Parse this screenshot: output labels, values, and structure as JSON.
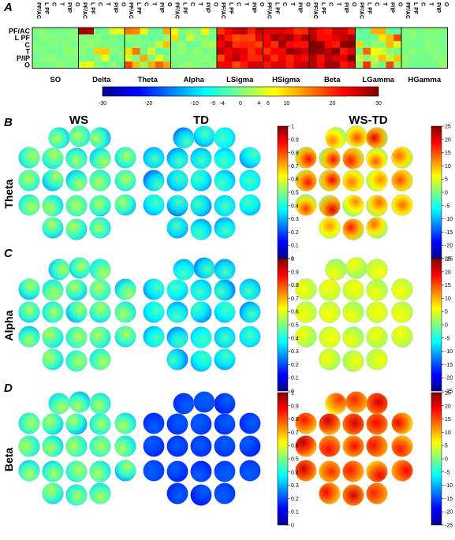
{
  "panel_letters": [
    "A",
    "B",
    "C",
    "D"
  ],
  "panel_a": {
    "regions": [
      "PF/AC",
      "L PF",
      "C",
      "T",
      "P/IP",
      "O"
    ],
    "top_region_labels": [
      "PF/AC",
      "L PF",
      "C",
      "T",
      "P/IP",
      "O"
    ],
    "bands": [
      "SO",
      "Delta",
      "Theta",
      "Alpha",
      "LSigma",
      "HSigma",
      "Beta",
      "LGamma",
      "HGamma"
    ],
    "colorbar_ticks": [
      "-30",
      "-20",
      "-10",
      "-6",
      "-4",
      "0",
      "4",
      "6",
      "10",
      "20",
      "30"
    ]
  },
  "column_titles": [
    "WS",
    "TD",
    "WS-TD"
  ],
  "row_titles": [
    "Theta",
    "Alpha",
    "Beta"
  ],
  "colorbar_left_ticks": [
    "1",
    "0.9",
    "0.8",
    "0.7",
    "0.6",
    "0.5",
    "0.4",
    "0.3",
    "0.2",
    "0.1",
    "0"
  ],
  "colorbar_right_ticks": [
    "25",
    "20",
    "15",
    "10",
    "5",
    "0",
    "-5",
    "-10",
    "-15",
    "-20",
    "-25"
  ],
  "chart_data": {
    "type": "heatmap",
    "description_bands": [
      "SO",
      "Delta",
      "Theta",
      "Alpha",
      "LSigma",
      "HSigma",
      "Beta",
      "LGamma",
      "HGamma"
    ],
    "regions": [
      "PF/AC",
      "L PF",
      "C",
      "T",
      "P/IP",
      "O"
    ],
    "color_range": [
      -30,
      30
    ],
    "band_dominant_level": {
      "SO": 0,
      "Delta": 8,
      "Theta": 10,
      "Alpha": 4,
      "LSigma": 22,
      "HSigma": 24,
      "Beta": 26,
      "LGamma": 12,
      "HGamma": 1
    }
  }
}
